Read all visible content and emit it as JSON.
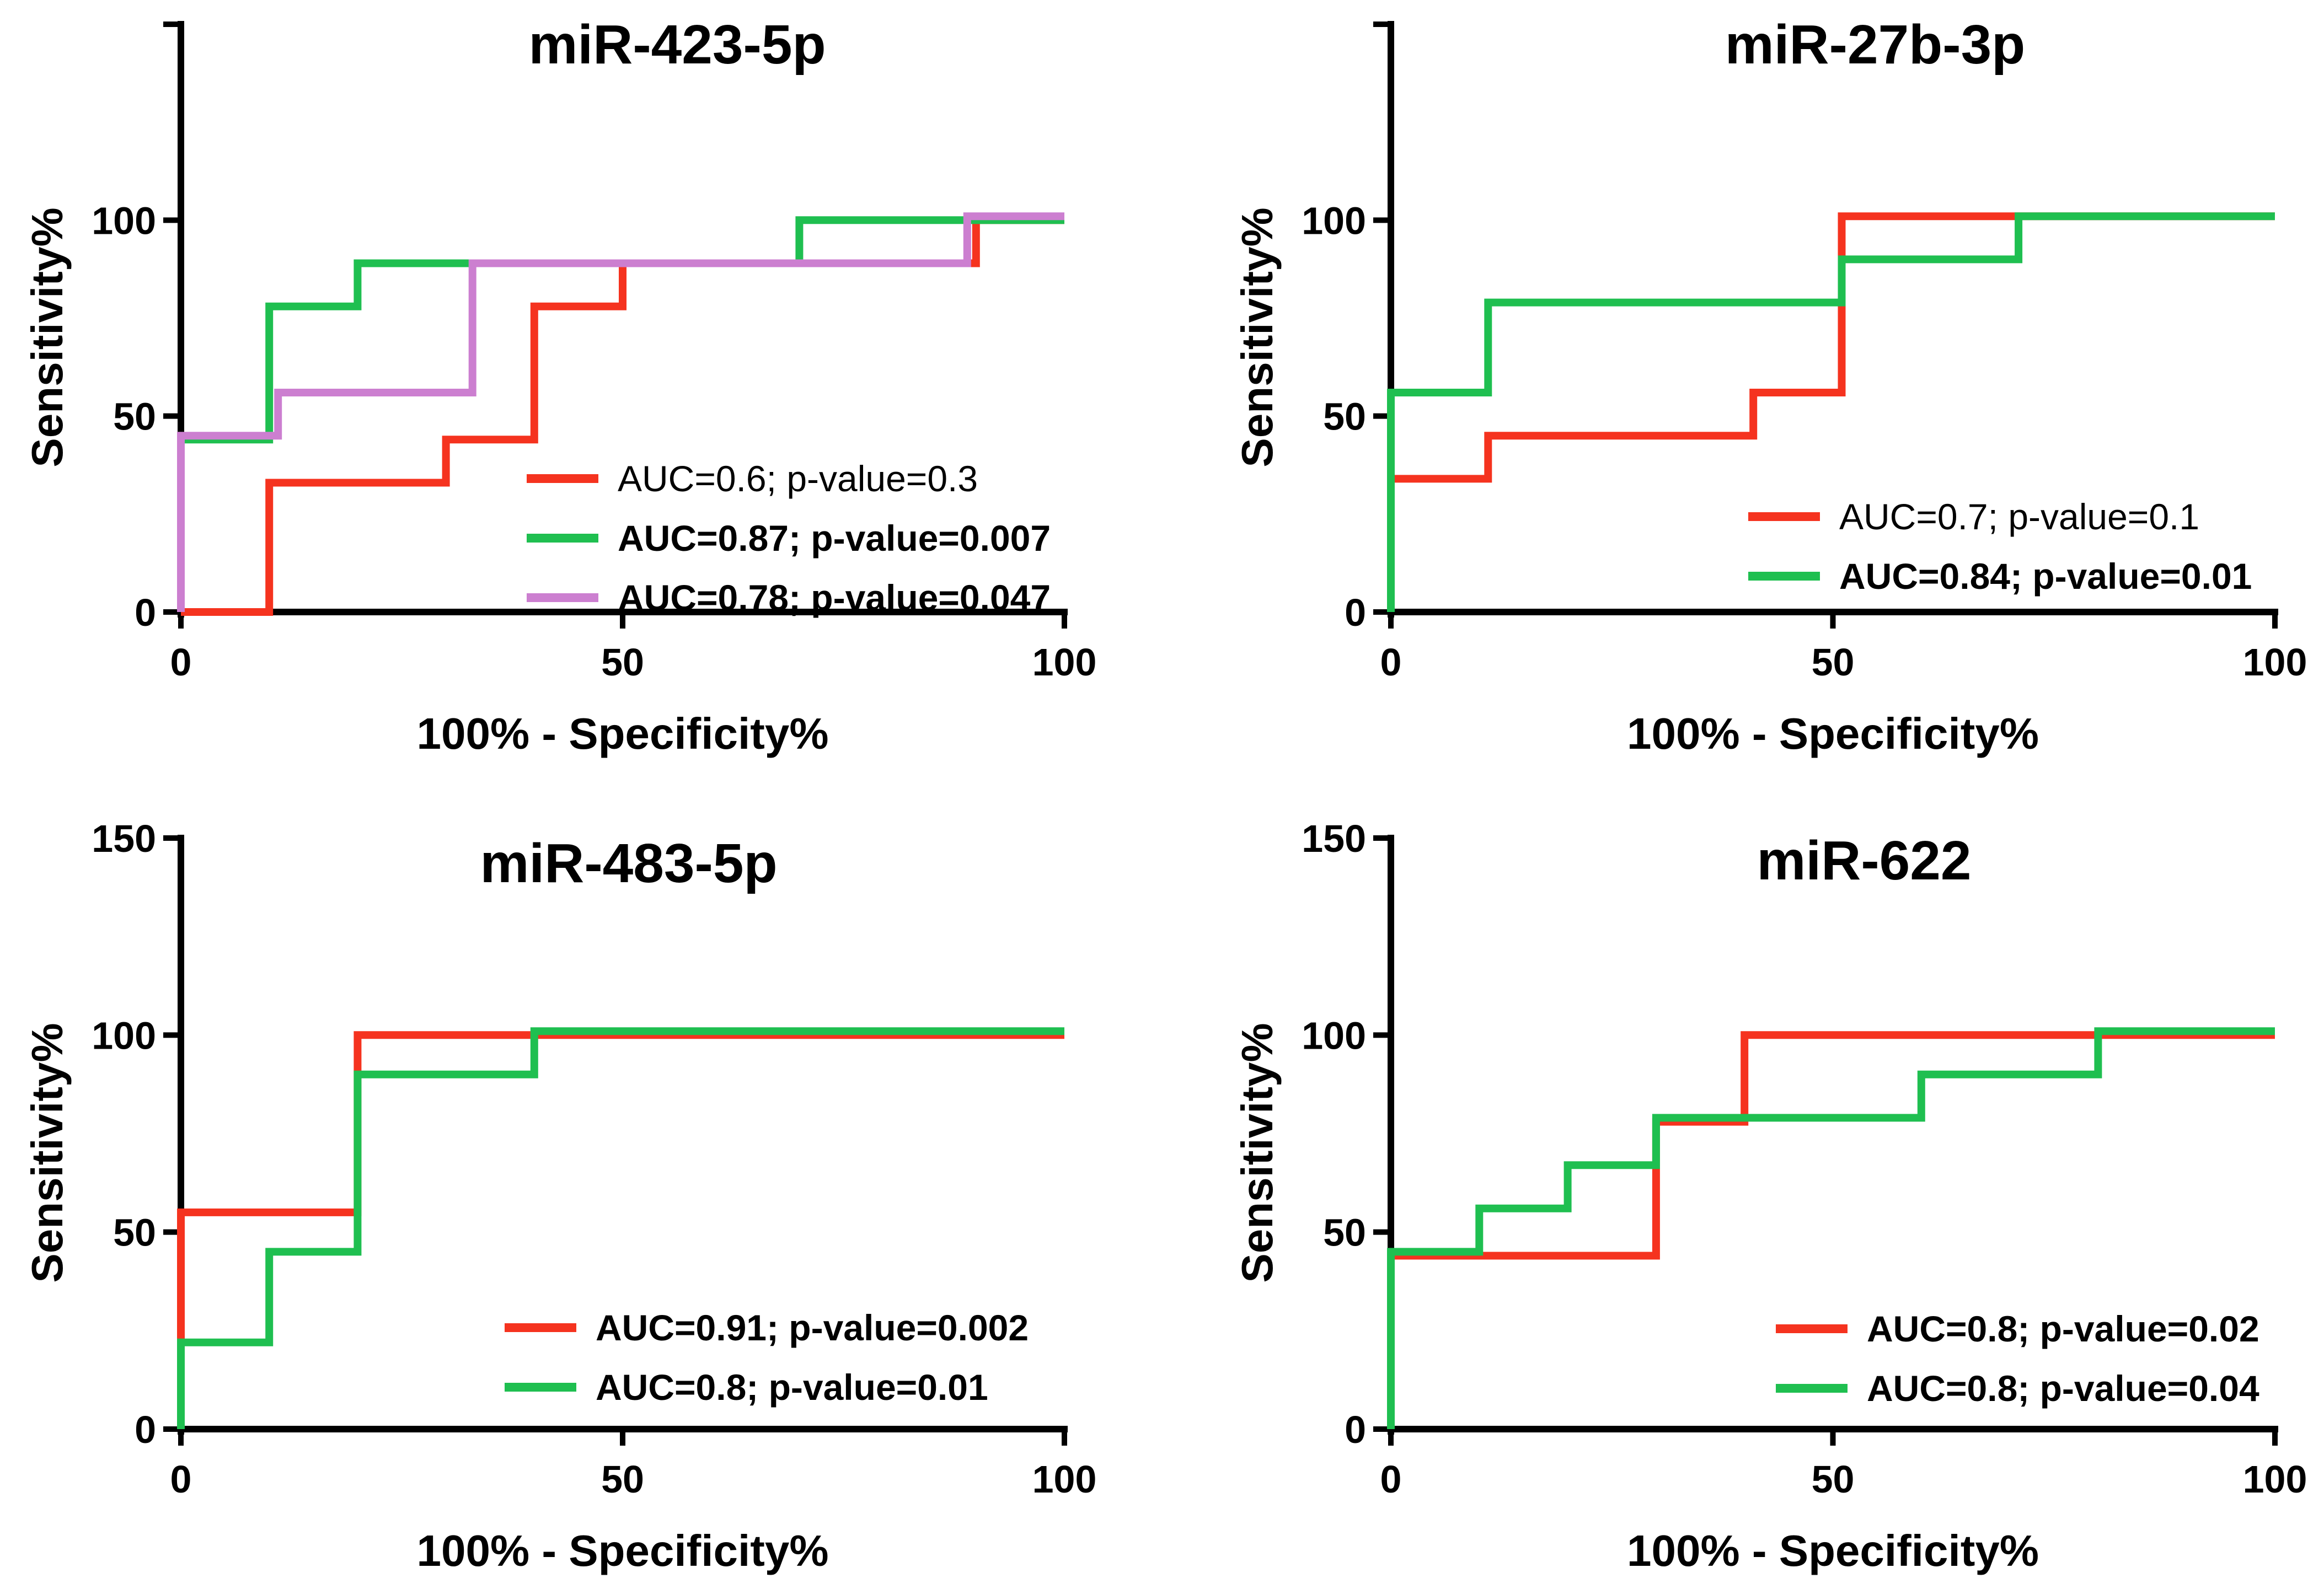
{
  "chart_data": [
    {
      "type": "line",
      "title": "miR-423-5p",
      "xlabel": "100% - Specificity%",
      "ylabel": "Sensitivity%",
      "xlim": [
        0,
        100
      ],
      "ylim": [
        0,
        150
      ],
      "xticks": [
        "0",
        "50",
        "100"
      ],
      "yticks": [
        "0",
        "50",
        "100"
      ],
      "legend_position": "bottom-right",
      "series": [
        {
          "name": "AUC=0.6; p-value=0.3",
          "color": "#f5331f",
          "bold": false,
          "x": [
            0,
            10,
            10,
            30,
            30,
            40,
            40,
            50,
            50,
            90,
            90,
            100
          ],
          "y": [
            0,
            0,
            33,
            33,
            44,
            44,
            78,
            78,
            89,
            89,
            100,
            100
          ]
        },
        {
          "name": "AUC=0.87; p-value=0.007",
          "color": "#1fbf50",
          "bold": true,
          "x": [
            0,
            0,
            10,
            10,
            20,
            20,
            70,
            70,
            100
          ],
          "y": [
            0,
            44,
            44,
            78,
            78,
            89,
            89,
            100,
            100
          ]
        },
        {
          "name": "AUC=0.78; p-value=0.047",
          "color": "#cc7fd0",
          "bold": true,
          "x": [
            0,
            0,
            11,
            11,
            33,
            33,
            89,
            89,
            100
          ],
          "y": [
            0,
            45,
            45,
            56,
            56,
            89,
            89,
            101,
            101
          ]
        }
      ]
    },
    {
      "type": "line",
      "title": "miR-27b-3p",
      "xlabel": "100% - Specificity%",
      "ylabel": "Sensitivity%",
      "xlim": [
        0,
        100
      ],
      "ylim": [
        0,
        150
      ],
      "xticks": [
        "0",
        "50",
        "100"
      ],
      "yticks": [
        "0",
        "50",
        "100"
      ],
      "legend_position": "bottom-right",
      "series": [
        {
          "name": "AUC=0.7; p-value=0.1",
          "color": "#f5331f",
          "bold": false,
          "x": [
            0,
            0,
            11,
            11,
            41,
            41,
            51,
            51,
            100
          ],
          "y": [
            0,
            34,
            34,
            45,
            45,
            56,
            56,
            101,
            101
          ]
        },
        {
          "name": "AUC=0.84; p-value=0.01",
          "color": "#1fbf50",
          "bold": true,
          "x": [
            0,
            0,
            11,
            11,
            51,
            51,
            71,
            71,
            100
          ],
          "y": [
            0,
            56,
            56,
            79,
            79,
            90,
            90,
            101,
            101
          ]
        }
      ]
    },
    {
      "type": "line",
      "title": "miR-483-5p",
      "xlabel": "100% - Specificity%",
      "ylabel": "Sensitivity%",
      "xlim": [
        0,
        100
      ],
      "ylim": [
        0,
        150
      ],
      "xticks": [
        "0",
        "50",
        "100"
      ],
      "yticks": [
        "0",
        "50",
        "100",
        "150"
      ],
      "legend_position": "bottom-right",
      "series": [
        {
          "name": "AUC=0.91; p-value=0.002",
          "color": "#f5331f",
          "bold": true,
          "x": [
            0,
            0,
            20,
            20,
            100
          ],
          "y": [
            0,
            55,
            55,
            100,
            100
          ]
        },
        {
          "name": "AUC=0.8; p-value=0.01",
          "color": "#1fbf50",
          "bold": true,
          "x": [
            0,
            0,
            10,
            10,
            20,
            20,
            40,
            40,
            100
          ],
          "y": [
            0,
            22,
            22,
            45,
            45,
            90,
            90,
            101,
            101
          ]
        }
      ]
    },
    {
      "type": "line",
      "title": "miR-622",
      "xlabel": "100% - Specificity%",
      "ylabel": "Sensitivity%",
      "xlim": [
        0,
        100
      ],
      "ylim": [
        0,
        150
      ],
      "xticks": [
        "0",
        "50",
        "100"
      ],
      "yticks": [
        "0",
        "50",
        "100",
        "150"
      ],
      "legend_position": "bottom-right",
      "series": [
        {
          "name": "AUC=0.8; p-value=0.02",
          "color": "#f5331f",
          "bold": true,
          "x": [
            0,
            0,
            30,
            30,
            40,
            40,
            100
          ],
          "y": [
            0,
            44,
            44,
            78,
            78,
            100,
            100
          ]
        },
        {
          "name": "AUC=0.8; p-value=0.04",
          "color": "#1fbf50",
          "bold": true,
          "x": [
            0,
            0,
            10,
            10,
            20,
            20,
            30,
            30,
            60,
            60,
            80,
            80,
            100
          ],
          "y": [
            0,
            45,
            45,
            56,
            56,
            67,
            67,
            79,
            79,
            90,
            90,
            101,
            101
          ]
        }
      ]
    }
  ]
}
